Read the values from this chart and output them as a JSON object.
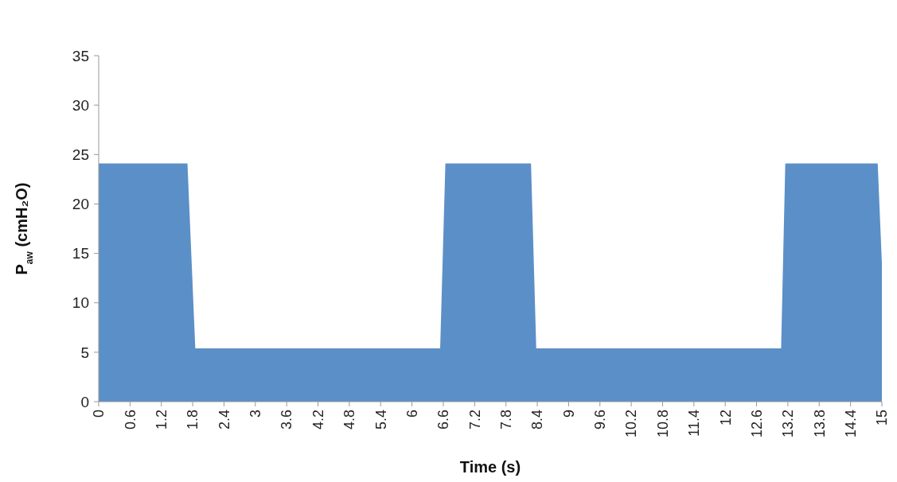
{
  "chart_data": {
    "type": "area",
    "xlabel": "Time (s)",
    "ylabel": "P$_{aw}$ (cmH₂O)",
    "x": [
      0,
      1.7,
      1.85,
      6.54,
      6.64,
      8.28,
      8.38,
      13.07,
      13.15,
      14.92,
      15
    ],
    "series": [
      {
        "color": "#5b8fc7",
        "values": [
          24.1,
          24.1,
          5.4,
          5.4,
          24.1,
          24.1,
          5.4,
          5.4,
          24.1,
          24.1,
          14
        ]
      }
    ],
    "xlim": [
      0,
      15
    ],
    "xticks": [
      0,
      0.6,
      1.2,
      1.8,
      2.4,
      3,
      3.6,
      4.2,
      4.8,
      5.4,
      6,
      6.6,
      7.2,
      7.8,
      8.4,
      9,
      9.6,
      10.2,
      10.8,
      11.4,
      12,
      12.6,
      13.2,
      13.8,
      14.4,
      15
    ],
    "ylim": [
      0,
      35
    ],
    "yticks": [
      0,
      5,
      10,
      15,
      20,
      25,
      30,
      35
    ]
  }
}
